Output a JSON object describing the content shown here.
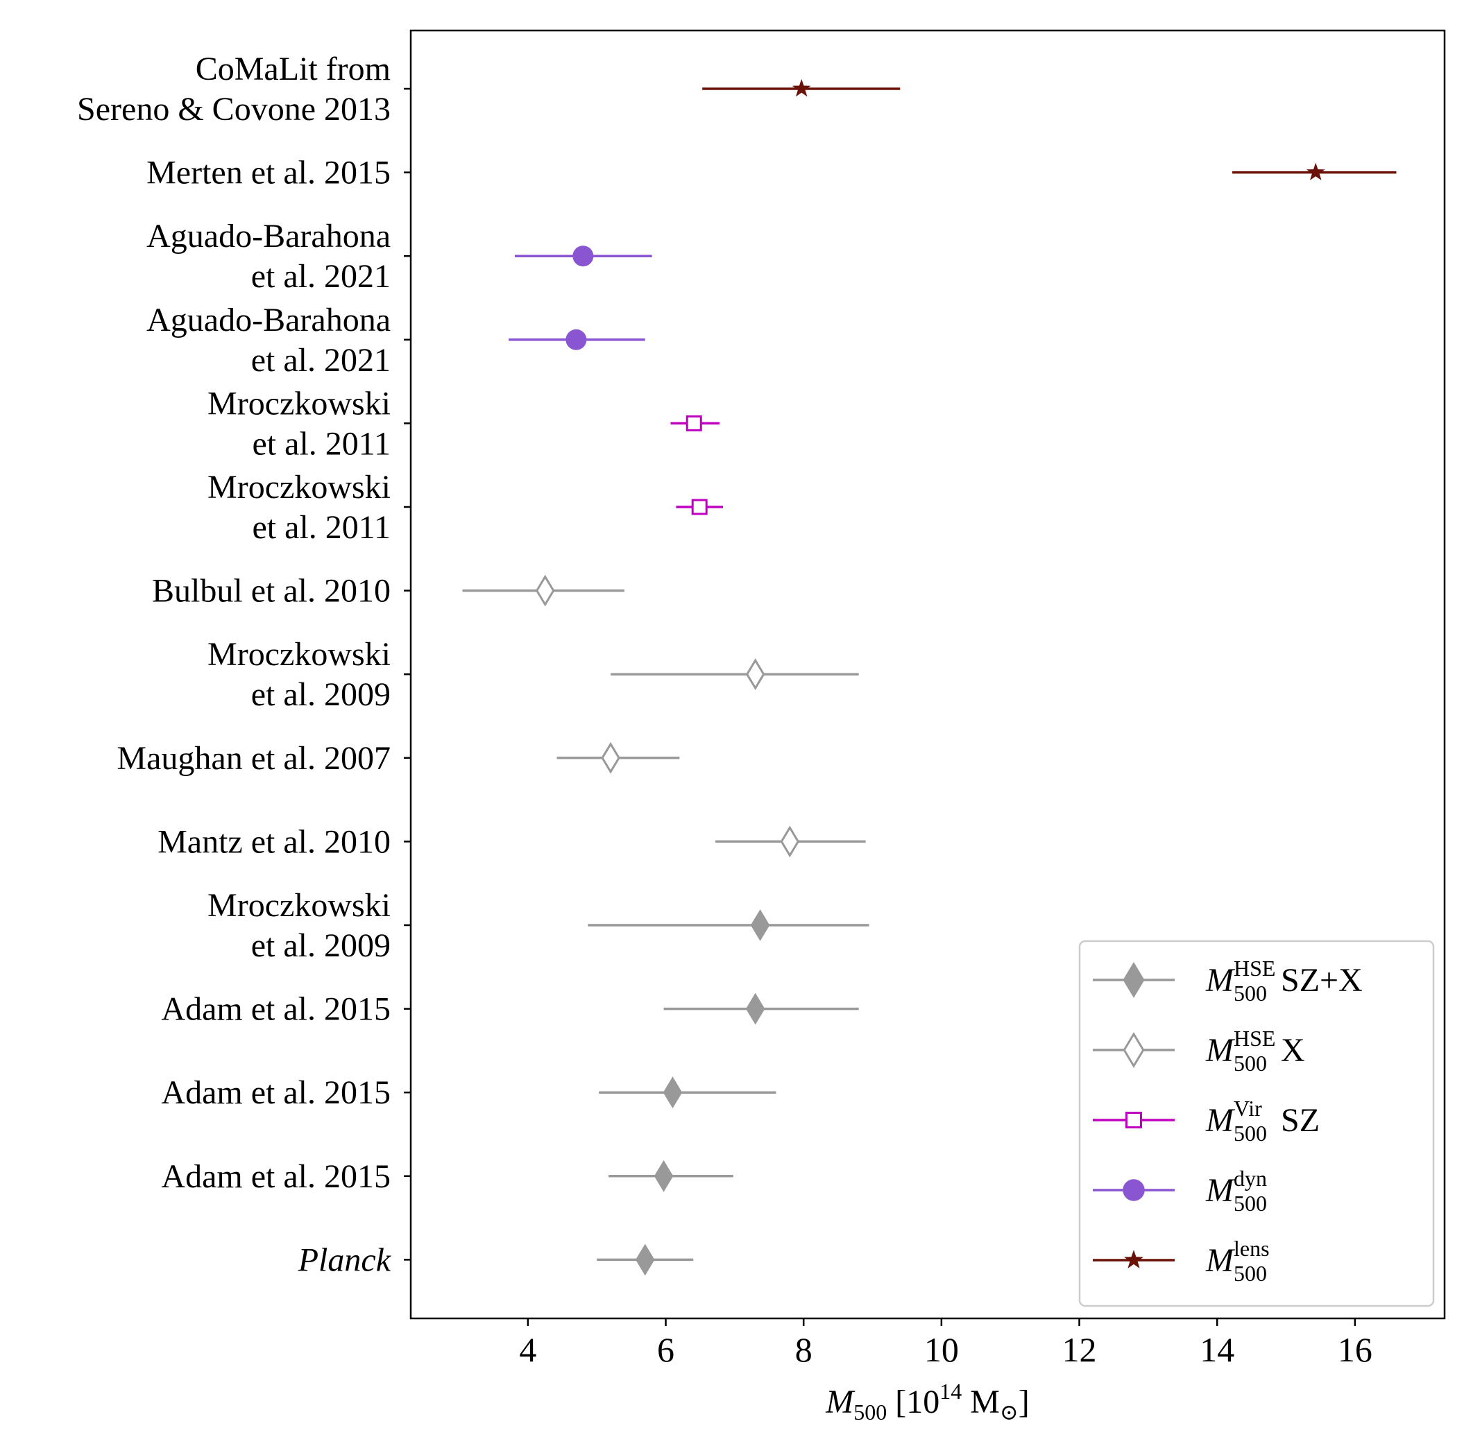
{
  "chart_data": {
    "type": "errorbar",
    "xlabel": {
      "symbol": "M",
      "sub": "500",
      "unit_prefix": "[10",
      "exp": "14",
      "unit": "M",
      "unit_sub": "⊙",
      "close": "]"
    },
    "xlim": [
      2.3,
      17.3
    ],
    "xticks": [
      4,
      6,
      8,
      10,
      12,
      14,
      16
    ],
    "rows": [
      {
        "label": [
          "CoMaLit from",
          "Sereno & Covone 2013"
        ],
        "value": 7.97,
        "lo": 6.53,
        "hi": 9.4,
        "series": "lens"
      },
      {
        "label": [
          "Merten et al. 2015"
        ],
        "value": 15.43,
        "lo": 14.22,
        "hi": 16.6,
        "series": "lens"
      },
      {
        "label": [
          "Aguado-Barahona",
          "et al. 2021"
        ],
        "value": 4.8,
        "lo": 3.81,
        "hi": 5.8,
        "series": "dyn"
      },
      {
        "label": [
          "Aguado-Barahona",
          "et al. 2021"
        ],
        "value": 4.7,
        "lo": 3.72,
        "hi": 5.7,
        "series": "dyn"
      },
      {
        "label": [
          "Mroczkowski",
          "et al. 2011"
        ],
        "value": 6.41,
        "lo": 6.07,
        "hi": 6.78,
        "series": "vir"
      },
      {
        "label": [
          "Mroczkowski",
          "et al. 2011"
        ],
        "value": 6.49,
        "lo": 6.15,
        "hi": 6.83,
        "series": "vir"
      },
      {
        "label": [
          "Bulbul et al. 2010"
        ],
        "value": 4.25,
        "lo": 3.05,
        "hi": 5.4,
        "series": "hse_x"
      },
      {
        "label": [
          "Mroczkowski",
          "et al. 2009"
        ],
        "value": 7.3,
        "lo": 5.2,
        "hi": 8.8,
        "series": "hse_x"
      },
      {
        "label": [
          "Maughan et al. 2007"
        ],
        "value": 5.2,
        "lo": 4.42,
        "hi": 6.2,
        "series": "hse_x"
      },
      {
        "label": [
          "Mantz et al. 2010"
        ],
        "value": 7.8,
        "lo": 6.72,
        "hi": 8.9,
        "series": "hse_x"
      },
      {
        "label": [
          "Mroczkowski",
          "et al. 2009"
        ],
        "value": 7.37,
        "lo": 4.87,
        "hi": 8.95,
        "series": "hse_szx"
      },
      {
        "label": [
          "Adam et al. 2015"
        ],
        "value": 7.3,
        "lo": 5.97,
        "hi": 8.8,
        "series": "hse_szx"
      },
      {
        "label": [
          "Adam et al. 2015"
        ],
        "value": 6.1,
        "lo": 5.03,
        "hi": 7.6,
        "series": "hse_szx"
      },
      {
        "label": [
          "Adam et al. 2015"
        ],
        "value": 5.97,
        "lo": 5.17,
        "hi": 6.98,
        "series": "hse_szx"
      },
      {
        "label": [
          "Planck"
        ],
        "value": 5.7,
        "lo": 5.0,
        "hi": 6.4,
        "series": "hse_szx",
        "italic": true
      }
    ],
    "legend": {
      "position": "lower-right",
      "entries": [
        {
          "series": "hse_szx",
          "marker": "diamond-filled",
          "color": "#999999",
          "sym": "M",
          "sup": "HSE",
          "sub": "500",
          "suffix": "SZ+X"
        },
        {
          "series": "hse_x",
          "marker": "diamond-open",
          "color": "#999999",
          "sym": "M",
          "sup": "HSE",
          "sub": "500",
          "suffix": "X"
        },
        {
          "series": "vir",
          "marker": "square-open",
          "color": "#c000c0",
          "sym": "M",
          "sup": "Vir",
          "sub": "500",
          "suffix": "SZ"
        },
        {
          "series": "dyn",
          "marker": "circle-filled",
          "color": "#8a55d0",
          "sym": "M",
          "sup": "dyn",
          "sub": "500",
          "suffix": ""
        },
        {
          "series": "lens",
          "marker": "star-filled",
          "color": "#6b1208",
          "sym": "M",
          "sup": "lens",
          "sub": "500",
          "suffix": ""
        }
      ]
    }
  }
}
